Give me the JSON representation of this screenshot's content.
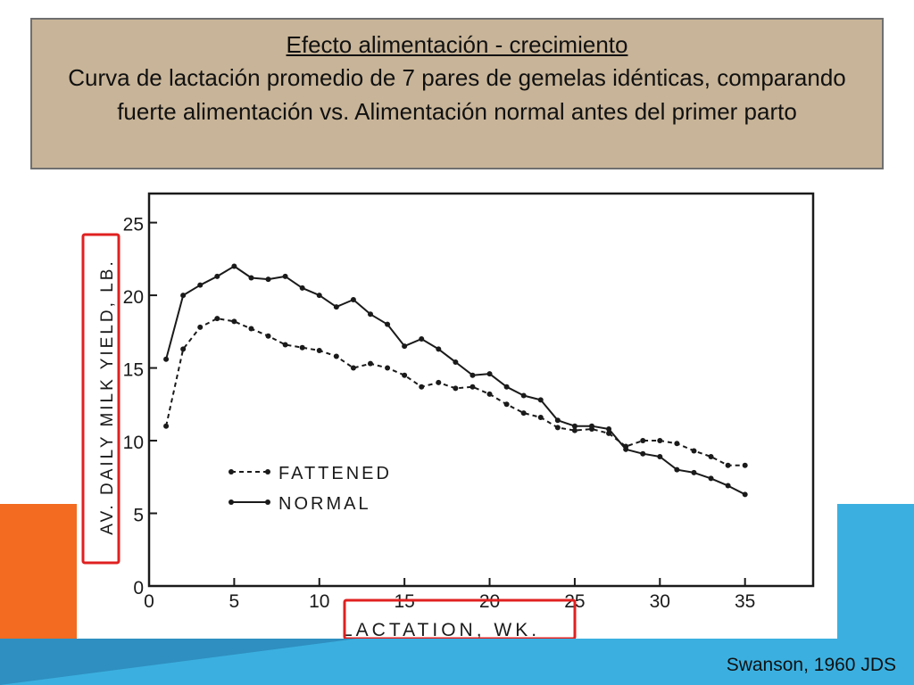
{
  "slide": {
    "title_line1": "Efecto alimentación - crecimiento",
    "title_line2": "Curva de lactación promedio de 7 pares de gemelas idénticas, comparando fuerte alimentación vs. Alimentación normal antes del primer parto",
    "credit": "Swanson, 1960 JDS"
  },
  "colors": {
    "title_bg": "#c8b498",
    "highlight": "#e02020",
    "orange_accent": "#f26b20",
    "blue_accent": "#3bb0e0"
  },
  "chart_data": {
    "type": "line",
    "xlabel": "LACTATION, WK.",
    "ylabel": "AV. DAILY MILK YIELD, LB.",
    "xlim": [
      0,
      39
    ],
    "ylim": [
      0,
      27
    ],
    "xticks": [
      0,
      5,
      10,
      15,
      20,
      25,
      30,
      35
    ],
    "yticks": [
      0,
      5,
      10,
      15,
      20,
      25
    ],
    "xticklabels": [
      "0",
      "5",
      "10",
      "15",
      "20",
      "25",
      "30",
      "35"
    ],
    "yticklabels": [
      "0",
      "5",
      "10",
      "15",
      "20",
      "25"
    ],
    "legend_position": "center-left",
    "series": [
      {
        "name": "FATTENED",
        "style": "dashed",
        "x": [
          1,
          2,
          3,
          4,
          5,
          6,
          7,
          8,
          9,
          10,
          11,
          12,
          13,
          14,
          15,
          16,
          17,
          18,
          19,
          20,
          21,
          22,
          23,
          24,
          25,
          26,
          27,
          28,
          29,
          30,
          31,
          32,
          33,
          34,
          35
        ],
        "values": [
          11.0,
          16.3,
          17.8,
          18.4,
          18.2,
          17.7,
          17.2,
          16.6,
          16.4,
          16.2,
          15.8,
          15.0,
          15.3,
          15.0,
          14.5,
          13.7,
          14.0,
          13.6,
          13.7,
          13.2,
          12.5,
          11.9,
          11.6,
          10.9,
          10.7,
          10.8,
          10.5,
          9.6,
          10.0,
          10.0,
          9.8,
          9.3,
          8.9,
          8.3,
          8.3
        ]
      },
      {
        "name": "NORMAL",
        "style": "solid",
        "x": [
          1,
          2,
          3,
          4,
          5,
          6,
          7,
          8,
          9,
          10,
          11,
          12,
          13,
          14,
          15,
          16,
          17,
          18,
          19,
          20,
          21,
          22,
          23,
          24,
          25,
          26,
          27,
          28,
          29,
          30,
          31,
          32,
          33,
          34,
          35
        ],
        "values": [
          15.6,
          20.0,
          20.7,
          21.3,
          22.0,
          21.2,
          21.1,
          21.3,
          20.5,
          20.0,
          19.2,
          19.7,
          18.7,
          18.0,
          16.5,
          17.0,
          16.3,
          15.4,
          14.5,
          14.6,
          13.7,
          13.1,
          12.8,
          11.4,
          11.0,
          11.0,
          10.8,
          9.4,
          9.1,
          8.9,
          8.0,
          7.8,
          7.4,
          6.9,
          6.3
        ]
      }
    ]
  }
}
